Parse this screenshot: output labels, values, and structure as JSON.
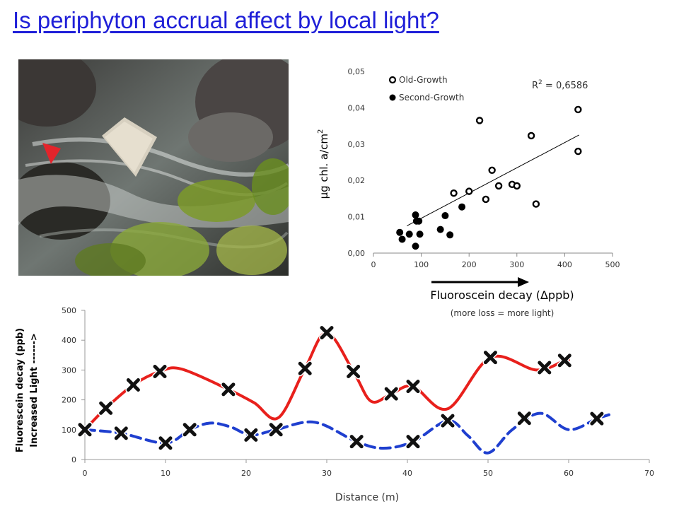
{
  "title": "Is periphyton accrual affect by local light?",
  "photo": {
    "icon": "stream-photo-image"
  },
  "chart_data": [
    {
      "type": "scatter",
      "ylabel_main": "µg chl. a/cm",
      "ylabel_sup": "2",
      "xlabel": "Fluoroscein decay (Δppb)",
      "x_note": "(more loss = more light)",
      "xlim": [
        0,
        500
      ],
      "ylim": [
        0,
        0.05
      ],
      "x_ticks": [
        "0",
        "100",
        "200",
        "300",
        "400",
        "500"
      ],
      "y_ticks": [
        "0,00",
        "0,01",
        "0,02",
        "0,03",
        "0,04",
        "0,05"
      ],
      "legend": [
        "Old-Growth",
        "Second-Growth"
      ],
      "r2_prefix": "R",
      "r2_sup": "2",
      "r2_value": " = 0,6586",
      "trendline": [
        [
          70,
          0.0075
        ],
        [
          430,
          0.0325
        ]
      ],
      "series": [
        {
          "name": "Old-Growth",
          "points": [
            [
              168,
              0.0165
            ],
            [
              200,
              0.017
            ],
            [
              222,
              0.0365
            ],
            [
              235,
              0.0148
            ],
            [
              248,
              0.0228
            ],
            [
              262,
              0.0185
            ],
            [
              290,
              0.0189
            ],
            [
              300,
              0.0185
            ],
            [
              330,
              0.0323
            ],
            [
              340,
              0.0135
            ],
            [
              428,
              0.0395
            ],
            [
              428,
              0.028
            ]
          ]
        },
        {
          "name": "Second-Growth",
          "points": [
            [
              55,
              0.0057
            ],
            [
              60,
              0.0038
            ],
            [
              75,
              0.0052
            ],
            [
              88,
              0.0105
            ],
            [
              88,
              0.0019
            ],
            [
              90,
              0.0088
            ],
            [
              95,
              0.0088
            ],
            [
              97,
              0.0052
            ],
            [
              140,
              0.0065
            ],
            [
              150,
              0.0103
            ],
            [
              160,
              0.005
            ],
            [
              185,
              0.0127
            ]
          ]
        }
      ]
    },
    {
      "type": "line",
      "ylabel_line1": "Fluorescein decay (ppb)",
      "ylabel_line2": "Increased Light ------>",
      "xlabel": "Distance (m)",
      "xlim": [
        0,
        70
      ],
      "ylim": [
        0,
        500
      ],
      "x_ticks": [
        "0",
        "10",
        "20",
        "30",
        "40",
        "50",
        "60",
        "70"
      ],
      "y_ticks": [
        "0",
        "100",
        "200",
        "300",
        "400",
        "500"
      ],
      "series": [
        {
          "name": "",
          "color": "#e8201c",
          "style": "solid",
          "points": [
            [
              0,
              100
            ],
            [
              2.6,
              172
            ],
            [
              6,
              250
            ],
            [
              9.3,
              295
            ],
            [
              17.8,
              235
            ],
            [
              27.3,
              305
            ],
            [
              30,
              425
            ],
            [
              33.3,
              295
            ],
            [
              38,
              220
            ],
            [
              40.7,
              245
            ],
            [
              50.3,
              342
            ],
            [
              57,
              308
            ],
            [
              59.5,
              332
            ]
          ]
        },
        {
          "name": "",
          "color": "#1f3fcf",
          "style": "dashed",
          "points": [
            [
              0,
              100
            ],
            [
              4.5,
              88
            ],
            [
              10,
              55
            ],
            [
              13,
              100
            ],
            [
              20.6,
              82
            ],
            [
              23.7,
              100
            ],
            [
              33.7,
              60
            ],
            [
              40.7,
              60
            ],
            [
              45,
              130
            ],
            [
              54.5,
              138
            ],
            [
              63.5,
              137
            ]
          ]
        }
      ],
      "curve_paths": {
        "red": [
          [
            0,
            100
          ],
          [
            2.6,
            172
          ],
          [
            6,
            250
          ],
          [
            9.3,
            295
          ],
          [
            12,
            303
          ],
          [
            17.8,
            235
          ],
          [
            21,
            190
          ],
          [
            24,
            140
          ],
          [
            27.3,
            305
          ],
          [
            30,
            425
          ],
          [
            33.3,
            295
          ],
          [
            35.5,
            195
          ],
          [
            38,
            220
          ],
          [
            40.7,
            245
          ],
          [
            45,
            170
          ],
          [
            50.3,
            342
          ],
          [
            56,
            300
          ],
          [
            59.5,
            332
          ],
          [
            60,
            335
          ]
        ],
        "blue": [
          [
            0,
            100
          ],
          [
            4.5,
            88
          ],
          [
            10,
            55
          ],
          [
            13,
            100
          ],
          [
            15.5,
            122
          ],
          [
            18,
            110
          ],
          [
            20.6,
            82
          ],
          [
            23.7,
            100
          ],
          [
            28.5,
            125
          ],
          [
            33.7,
            60
          ],
          [
            37,
            38
          ],
          [
            40.7,
            60
          ],
          [
            45,
            130
          ],
          [
            47.5,
            80
          ],
          [
            50,
            22
          ],
          [
            53,
            100
          ],
          [
            56.5,
            155
          ],
          [
            60,
            100
          ],
          [
            63.5,
            137
          ],
          [
            65,
            150
          ]
        ]
      }
    }
  ]
}
